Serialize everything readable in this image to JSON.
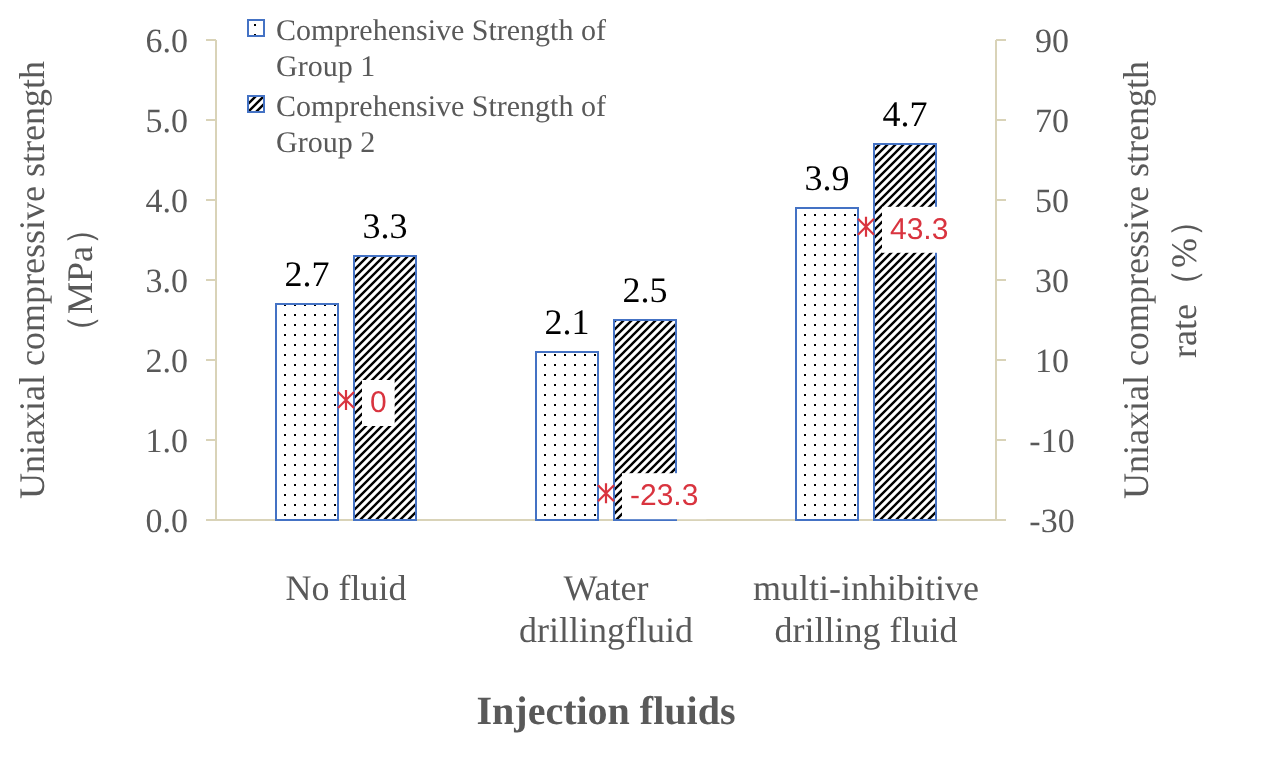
{
  "chart_data": {
    "type": "bar",
    "xlabel": "Injection fluids",
    "ylabel": "Uniaxial compressive strength（MPa）",
    "y2label": "Uniaxial compressive strength rate（%）",
    "categories": [
      "No fluid",
      "Water drillingfluid",
      "multi-inhibitive drilling fluid"
    ],
    "series": [
      {
        "name": "Comprehensive Strength of Group 1",
        "color": "#4472c4",
        "values": [
          2.7,
          2.1,
          3.9
        ]
      },
      {
        "name": "Comprehensive Strength of Group 2",
        "color": "#4472c4",
        "values": [
          3.3,
          2.5,
          4.7
        ]
      },
      {
        "type": "scatter",
        "axis": "y2",
        "color": "#d9343f",
        "marker": "cross",
        "values": [
          0,
          -23.3,
          43.3
        ]
      }
    ],
    "ylim": [
      0,
      6
    ],
    "yticks": [
      {
        "value": 0,
        "label": "0.0"
      },
      {
        "value": 1,
        "label": "1.0"
      },
      {
        "value": 2,
        "label": "2.0"
      },
      {
        "value": 3,
        "label": "3.0"
      },
      {
        "value": 4,
        "label": "4.0"
      },
      {
        "value": 5,
        "label": "5.0"
      },
      {
        "value": 6,
        "label": "6.0"
      }
    ],
    "y2lim": [
      -30,
      90
    ],
    "y2ticks": [
      -30,
      -10,
      10,
      30,
      50,
      70,
      90
    ],
    "data_labels": true,
    "legend": "top left",
    "grid": false
  }
}
